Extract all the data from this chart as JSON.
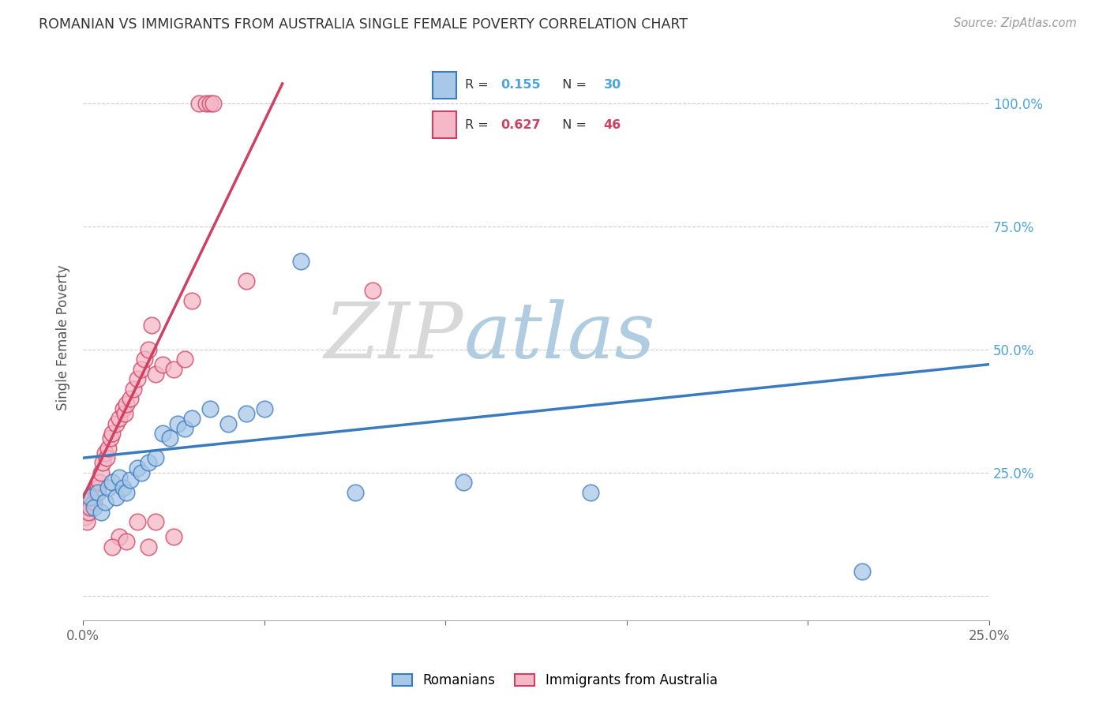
{
  "title": "ROMANIAN VS IMMIGRANTS FROM AUSTRALIA SINGLE FEMALE POVERTY CORRELATION CHART",
  "source": "Source: ZipAtlas.com",
  "ylabel": "Single Female Poverty",
  "legend_blue_r": "0.155",
  "legend_blue_n": "30",
  "legend_pink_r": "0.627",
  "legend_pink_n": "46",
  "legend_label_blue": "Romanians",
  "legend_label_pink": "Immigrants from Australia",
  "blue_color": "#a8c8e8",
  "pink_color": "#f4b8c8",
  "blue_line_color": "#3a7abf",
  "pink_line_color": "#d04060",
  "watermark_zip": "ZIP",
  "watermark_atlas": "atlas",
  "blue_scatter": [
    [
      0.2,
      20.0
    ],
    [
      0.3,
      18.0
    ],
    [
      0.4,
      21.0
    ],
    [
      0.5,
      17.0
    ],
    [
      0.6,
      19.0
    ],
    [
      0.7,
      22.0
    ],
    [
      0.8,
      23.0
    ],
    [
      0.9,
      20.0
    ],
    [
      1.0,
      24.0
    ],
    [
      1.1,
      22.0
    ],
    [
      1.2,
      21.0
    ],
    [
      1.3,
      23.5
    ],
    [
      1.5,
      26.0
    ],
    [
      1.6,
      25.0
    ],
    [
      1.8,
      27.0
    ],
    [
      2.0,
      28.0
    ],
    [
      2.2,
      33.0
    ],
    [
      2.4,
      32.0
    ],
    [
      2.6,
      35.0
    ],
    [
      2.8,
      34.0
    ],
    [
      3.0,
      36.0
    ],
    [
      3.5,
      38.0
    ],
    [
      4.0,
      35.0
    ],
    [
      4.5,
      37.0
    ],
    [
      5.0,
      38.0
    ],
    [
      6.0,
      68.0
    ],
    [
      7.5,
      21.0
    ],
    [
      10.5,
      23.0
    ],
    [
      14.0,
      21.0
    ],
    [
      21.5,
      5.0
    ]
  ],
  "pink_scatter": [
    [
      0.05,
      16.0
    ],
    [
      0.1,
      15.0
    ],
    [
      0.15,
      17.0
    ],
    [
      0.2,
      18.0
    ],
    [
      0.25,
      20.0
    ],
    [
      0.3,
      19.0
    ],
    [
      0.35,
      21.0
    ],
    [
      0.4,
      22.0
    ],
    [
      0.45,
      23.0
    ],
    [
      0.5,
      25.0
    ],
    [
      0.55,
      27.0
    ],
    [
      0.6,
      29.0
    ],
    [
      0.65,
      28.0
    ],
    [
      0.7,
      30.0
    ],
    [
      0.75,
      32.0
    ],
    [
      0.8,
      33.0
    ],
    [
      0.9,
      35.0
    ],
    [
      1.0,
      36.0
    ],
    [
      1.1,
      38.0
    ],
    [
      1.15,
      37.0
    ],
    [
      1.2,
      39.0
    ],
    [
      1.3,
      40.0
    ],
    [
      1.4,
      42.0
    ],
    [
      1.5,
      44.0
    ],
    [
      1.6,
      46.0
    ],
    [
      1.7,
      48.0
    ],
    [
      1.8,
      50.0
    ],
    [
      1.9,
      55.0
    ],
    [
      2.0,
      45.0
    ],
    [
      2.2,
      47.0
    ],
    [
      2.5,
      46.0
    ],
    [
      2.8,
      48.0
    ],
    [
      3.0,
      60.0
    ],
    [
      3.2,
      100.0
    ],
    [
      3.4,
      100.0
    ],
    [
      3.5,
      100.0
    ],
    [
      3.6,
      100.0
    ],
    [
      1.0,
      12.0
    ],
    [
      1.5,
      15.0
    ],
    [
      2.0,
      15.0
    ],
    [
      2.5,
      12.0
    ],
    [
      4.5,
      64.0
    ],
    [
      0.8,
      10.0
    ],
    [
      1.2,
      11.0
    ],
    [
      1.8,
      10.0
    ],
    [
      8.0,
      62.0
    ]
  ],
  "xlim": [
    0.0,
    25.0
  ],
  "ylim": [
    -5.0,
    110.0
  ],
  "blue_line_x0": 0.0,
  "blue_line_y0": 28.0,
  "blue_line_x1": 25.0,
  "blue_line_y1": 47.0,
  "pink_line_x0": 0.0,
  "pink_line_y0": 20.0,
  "pink_line_x1": 5.5,
  "pink_line_y1": 104.0,
  "background_color": "#ffffff",
  "grid_color": "#cccccc"
}
